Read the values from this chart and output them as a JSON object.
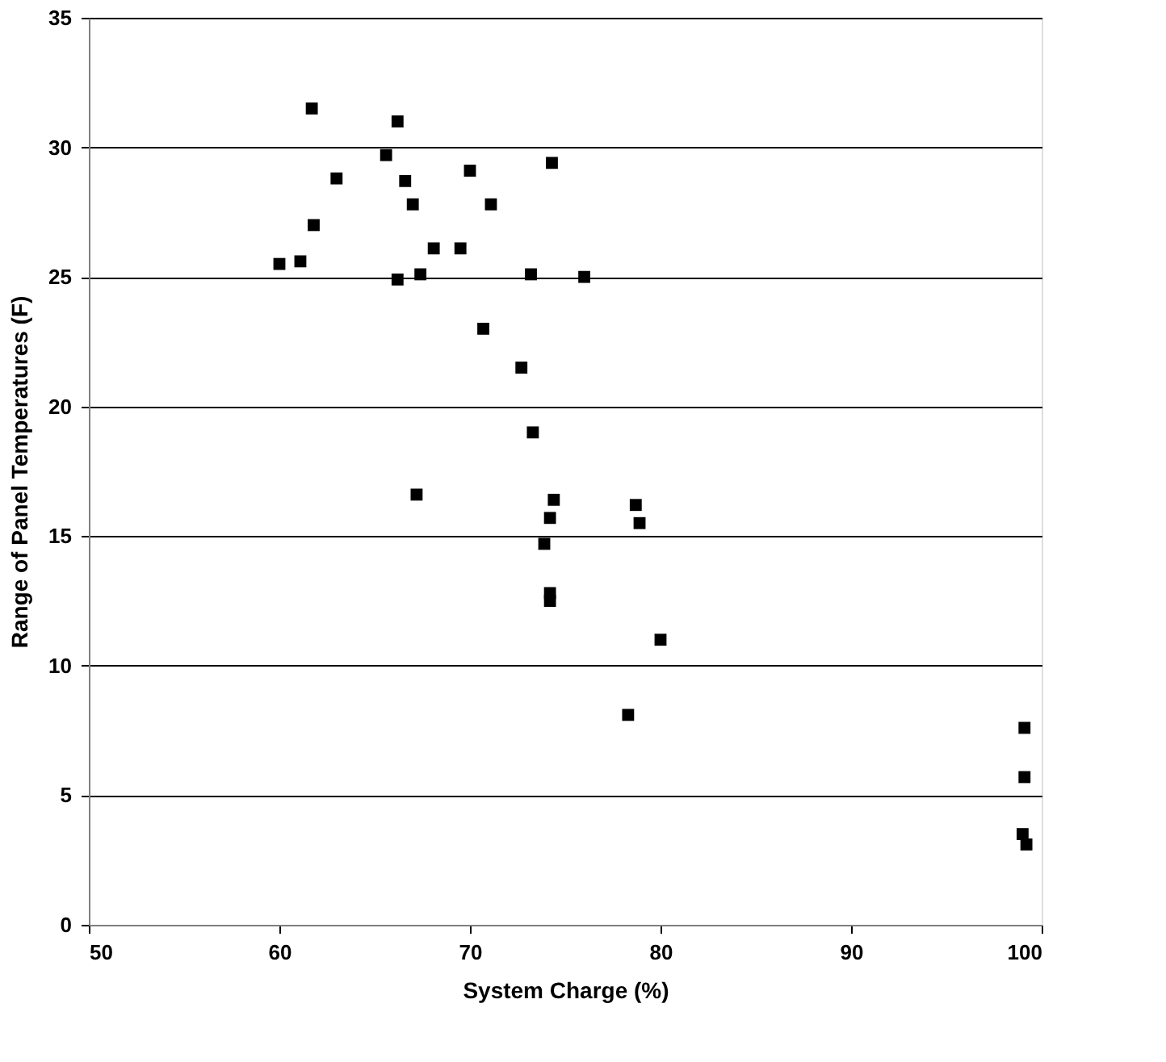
{
  "chart_data": {
    "type": "scatter",
    "xlabel": "System Charge (%)",
    "ylabel": "Range of Panel Temperatures (F)",
    "x": [
      60.0,
      61.1,
      61.7,
      61.8,
      63.0,
      65.6,
      66.2,
      66.2,
      66.6,
      67.0,
      67.2,
      67.4,
      68.1,
      69.5,
      70.0,
      70.7,
      71.1,
      72.7,
      73.2,
      73.3,
      74.3,
      76.0,
      73.9,
      74.2,
      74.4,
      74.2,
      74.2,
      78.7,
      78.9,
      80.0,
      78.3,
      99.1,
      99.1,
      99.0,
      99.2
    ],
    "series": [
      {
        "color": "#000000",
        "values": [
          25.5,
          25.6,
          31.5,
          27.0,
          28.8,
          29.7,
          31.0,
          24.9,
          28.7,
          27.8,
          16.6,
          25.1,
          26.1,
          26.1,
          29.1,
          23.0,
          27.8,
          21.5,
          25.1,
          19.0,
          29.4,
          25.0,
          14.7,
          15.7,
          16.4,
          12.8,
          12.5,
          16.2,
          15.5,
          11.0,
          8.1,
          7.6,
          5.7,
          3.5,
          3.1
        ]
      }
    ],
    "xlim": [
      50,
      100
    ],
    "xticks": [
      50,
      60,
      70,
      80,
      90,
      100
    ],
    "ylim": [
      0,
      35
    ],
    "yticks": [
      0,
      5,
      10,
      15,
      20,
      25,
      30,
      35
    ],
    "grid": "y",
    "marker": "square"
  }
}
